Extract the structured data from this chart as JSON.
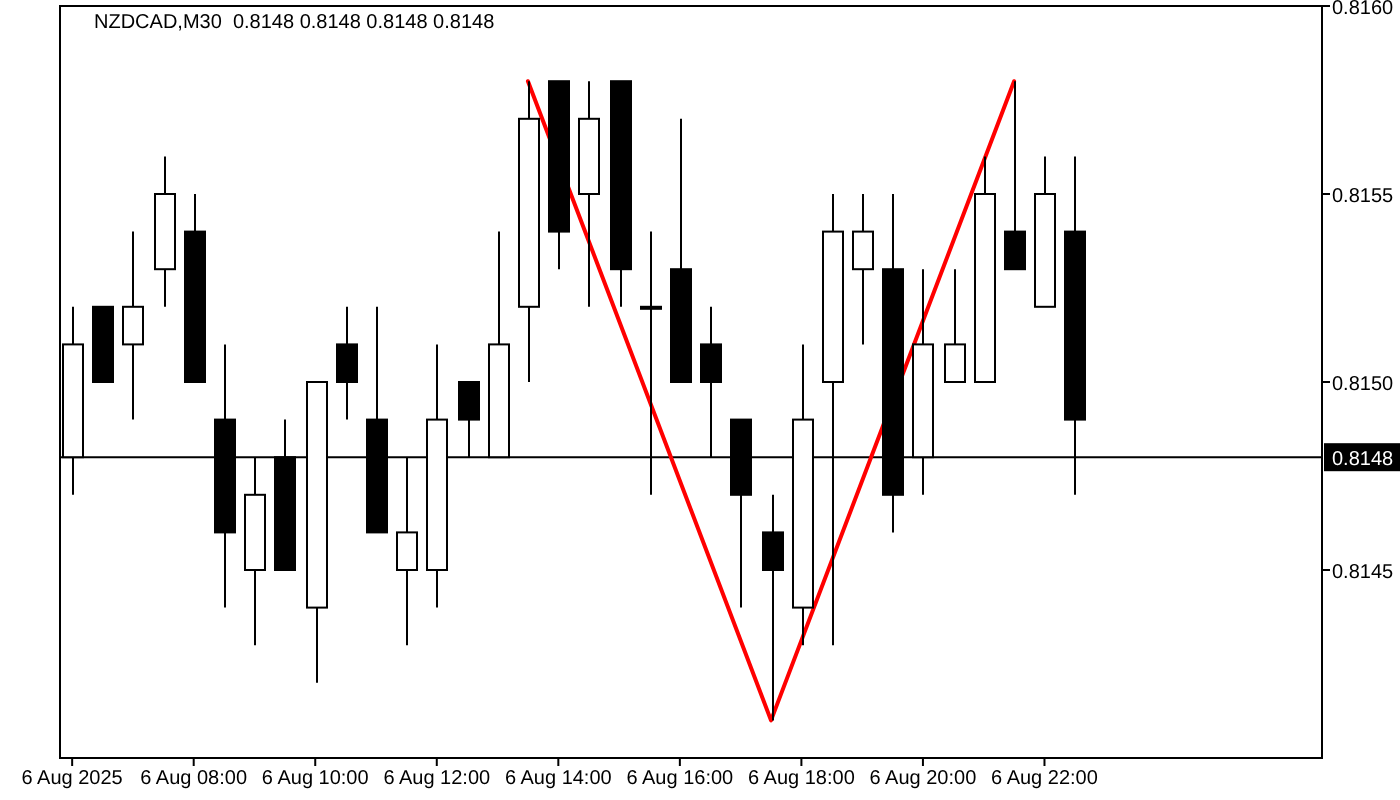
{
  "chart_data": {
    "type": "candlestick",
    "title": "NZDCAD,M30  0.8148 0.8148 0.8148 0.8148",
    "x": [
      "2025-08-06T06:00",
      "2025-08-06T06:30",
      "2025-08-06T07:00",
      "2025-08-06T07:30",
      "2025-08-06T08:00",
      "2025-08-06T08:30",
      "2025-08-06T09:00",
      "2025-08-06T09:30",
      "2025-08-06T10:00",
      "2025-08-06T10:30",
      "2025-08-06T11:00",
      "2025-08-06T11:30",
      "2025-08-06T12:00",
      "2025-08-06T12:30",
      "2025-08-06T13:00",
      "2025-08-06T13:30",
      "2025-08-06T14:00",
      "2025-08-06T14:30",
      "2025-08-06T15:00",
      "2025-08-06T15:30",
      "2025-08-06T16:00",
      "2025-08-06T16:30",
      "2025-08-06T17:00",
      "2025-08-06T17:30",
      "2025-08-06T18:00",
      "2025-08-06T18:30",
      "2025-08-06T19:00",
      "2025-08-06T19:30",
      "2025-08-06T20:00",
      "2025-08-06T20:30",
      "2025-08-06T21:00",
      "2025-08-06T21:30",
      "2025-08-06T22:00",
      "2025-08-06T22:30"
    ],
    "ohlc": [
      [
        0.8148,
        0.8152,
        0.8147,
        0.8151
      ],
      [
        0.8152,
        0.8152,
        0.815,
        0.815
      ],
      [
        0.8151,
        0.8154,
        0.8149,
        0.8152
      ],
      [
        0.8153,
        0.8156,
        0.8152,
        0.8155
      ],
      [
        0.8154,
        0.8155,
        0.815,
        0.815
      ],
      [
        0.8149,
        0.8151,
        0.8144,
        0.8146
      ],
      [
        0.8145,
        0.8148,
        0.8143,
        0.8147
      ],
      [
        0.8148,
        0.8149,
        0.8145,
        0.8145
      ],
      [
        0.8144,
        0.815,
        0.8142,
        0.815
      ],
      [
        0.8151,
        0.8152,
        0.8149,
        0.815
      ],
      [
        0.8149,
        0.8152,
        0.8146,
        0.8146
      ],
      [
        0.8145,
        0.8148,
        0.8143,
        0.8146
      ],
      [
        0.8145,
        0.8151,
        0.8144,
        0.8149
      ],
      [
        0.815,
        0.815,
        0.8148,
        0.8149
      ],
      [
        0.8148,
        0.8154,
        0.8148,
        0.8151
      ],
      [
        0.8152,
        0.8158,
        0.815,
        0.8157
      ],
      [
        0.8158,
        0.8158,
        0.8153,
        0.8154
      ],
      [
        0.8155,
        0.8158,
        0.8152,
        0.8157
      ],
      [
        0.8158,
        0.8158,
        0.8152,
        0.8153
      ],
      [
        0.8152,
        0.8154,
        0.8147,
        0.8152
      ],
      [
        0.8153,
        0.8157,
        0.815,
        0.815
      ],
      [
        0.8151,
        0.8152,
        0.8148,
        0.815
      ],
      [
        0.8149,
        0.8149,
        0.8144,
        0.8147
      ],
      [
        0.8146,
        0.8147,
        0.8141,
        0.8145
      ],
      [
        0.8144,
        0.8151,
        0.8143,
        0.8149
      ],
      [
        0.815,
        0.8155,
        0.8143,
        0.8154
      ],
      [
        0.8153,
        0.8155,
        0.8151,
        0.8154
      ],
      [
        0.8153,
        0.8155,
        0.8146,
        0.8147
      ],
      [
        0.8148,
        0.8153,
        0.8147,
        0.8151
      ],
      [
        0.815,
        0.8153,
        0.815,
        0.8151
      ],
      [
        0.815,
        0.8156,
        0.815,
        0.8155
      ],
      [
        0.8154,
        0.8158,
        0.8153,
        0.8153
      ],
      [
        0.8152,
        0.8156,
        0.8152,
        0.8155
      ],
      [
        0.8154,
        0.8156,
        0.8147,
        0.8149
      ]
    ],
    "series": [
      {
        "type": "line",
        "color": "#ff0000",
        "x": [
          "2025-08-06T13:30",
          "2025-08-06T17:30",
          "2025-08-06T21:30"
        ],
        "values": [
          0.8158,
          0.8141,
          0.8158
        ]
      }
    ],
    "xlim": [
      "2025-08-06T05:48",
      "2025-08-07T02:34"
    ],
    "xticks": [
      {
        "value": "2025-08-06T06:00",
        "label": "6 Aug 2025"
      },
      {
        "value": "2025-08-06T08:00",
        "label": "6 Aug 08:00"
      },
      {
        "value": "2025-08-06T10:00",
        "label": "6 Aug 10:00"
      },
      {
        "value": "2025-08-06T12:00",
        "label": "6 Aug 12:00"
      },
      {
        "value": "2025-08-06T14:00",
        "label": "6 Aug 14:00"
      },
      {
        "value": "2025-08-06T16:00",
        "label": "6 Aug 16:00"
      },
      {
        "value": "2025-08-06T18:00",
        "label": "6 Aug 18:00"
      },
      {
        "value": "2025-08-06T20:00",
        "label": "6 Aug 20:00"
      },
      {
        "value": "2025-08-06T22:00",
        "label": "6 Aug 22:00"
      }
    ],
    "ylim": [
      0.814,
      0.816
    ],
    "yticks": [
      {
        "value": 0.8145,
        "label": "0.8145"
      },
      {
        "value": 0.815,
        "label": "0.8150"
      },
      {
        "value": 0.8155,
        "label": "0.8155"
      },
      {
        "value": 0.816,
        "label": "0.8160"
      }
    ],
    "ref_lines": [
      {
        "axis": "y",
        "value": 0.8148,
        "label": "0.8148",
        "color": "#000000"
      }
    ]
  }
}
